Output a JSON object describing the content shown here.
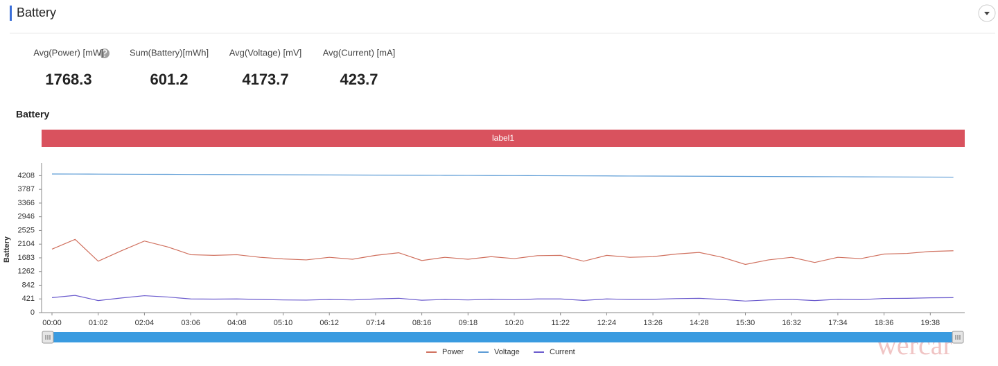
{
  "header": {
    "title": "Battery"
  },
  "stats": [
    {
      "label": "Avg(Power) [mW]",
      "value": 1768.3
    },
    {
      "label": "Sum(Battery)[mWh]",
      "value": 601.2
    },
    {
      "label": "Avg(Voltage) [mV]",
      "value": 4173.7
    },
    {
      "label": "Avg(Current) [mA]",
      "value": 423.7
    }
  ],
  "watermark": "wercar",
  "chart_data": {
    "type": "line",
    "title": "Battery",
    "band_label": "label1",
    "y_label": "Battery",
    "categories": [
      "00:00",
      null,
      "01:02",
      null,
      "02:04",
      null,
      "03:06",
      null,
      "04:08",
      null,
      "05:10",
      null,
      "06:12",
      null,
      "07:14",
      null,
      "08:16",
      null,
      "09:18",
      null,
      "10:20",
      null,
      "11:22",
      null,
      "12:24",
      null,
      "13:26",
      null,
      "14:28",
      null,
      "15:30",
      null,
      "16:32",
      null,
      "17:34",
      null,
      "18:36",
      null,
      "19:38",
      null
    ],
    "series": [
      {
        "name": "Power",
        "color": "#d0705e",
        "values": [
          1950,
          2250,
          1580,
          1900,
          2200,
          2020,
          1780,
          1760,
          1780,
          1700,
          1650,
          1620,
          1700,
          1640,
          1760,
          1840,
          1600,
          1700,
          1640,
          1720,
          1660,
          1750,
          1760,
          1580,
          1760,
          1700,
          1720,
          1800,
          1850,
          1700,
          1480,
          1620,
          1700,
          1540,
          1700,
          1660,
          1800,
          1820,
          1880,
          1900
        ]
      },
      {
        "name": "Voltage",
        "color": "#5b9bd5",
        "values": [
          4260,
          4258,
          4255,
          4253,
          4250,
          4248,
          4245,
          4243,
          4240,
          4238,
          4235,
          4232,
          4230,
          4227,
          4225,
          4222,
          4220,
          4217,
          4215,
          4212,
          4210,
          4207,
          4205,
          4202,
          4200,
          4197,
          4195,
          4192,
          4190,
          4187,
          4185,
          4182,
          4180,
          4177,
          4175,
          4172,
          4170,
          4167,
          4165,
          4162
        ]
      },
      {
        "name": "Current",
        "color": "#6a5acd",
        "values": [
          460,
          530,
          370,
          450,
          520,
          480,
          420,
          415,
          420,
          405,
          390,
          385,
          405,
          390,
          420,
          440,
          380,
          405,
          390,
          410,
          395,
          420,
          420,
          375,
          420,
          405,
          410,
          430,
          440,
          405,
          355,
          390,
          405,
          370,
          410,
          400,
          435,
          440,
          455,
          460
        ]
      }
    ],
    "ylim": [
      0,
      4600
    ],
    "yticks": [
      0,
      421,
      842,
      1262,
      1683,
      2104,
      2525,
      2946,
      3366,
      3787,
      4208
    ],
    "band_color": "#d9525e",
    "slider_color": "#3a9be0"
  }
}
